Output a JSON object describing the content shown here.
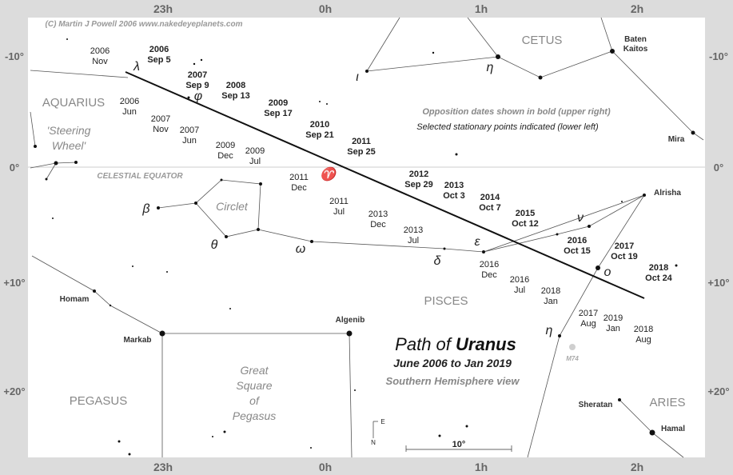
{
  "header": {
    "copyright": "(C) Martin J Powell  2006  www.nakedeyeplanets.com"
  },
  "axes": {
    "ra_top": [
      "23h",
      "0h",
      "1h",
      "2h"
    ],
    "ra_bottom": [
      "23h",
      "0h",
      "1h",
      "2h"
    ],
    "dec_left": [
      "-10°",
      "0°",
      "+10°",
      "+20°"
    ],
    "dec_right": [
      "-10°",
      "0°",
      "+10°",
      "+20°"
    ]
  },
  "title": {
    "prefix": "Path of",
    "emphasis": "Uranus",
    "subtitle": "June 2006 to Jan 2019",
    "view": "Southern Hemisphere view"
  },
  "notes": [
    "Opposition dates shown in bold (upper right)",
    "Selected stationary points indicated (lower left)"
  ],
  "equator_label": "CELESTIAL EQUATOR",
  "constellations": [
    {
      "lines": [
        "CETUS"
      ],
      "italic": false
    },
    {
      "lines": [
        "AQUARIUS"
      ],
      "italic": false
    },
    {
      "lines": [
        "'Steering",
        "Wheel'"
      ],
      "italic": true
    },
    {
      "lines": [
        "Circlet"
      ],
      "italic": true
    },
    {
      "lines": [
        "PISCES"
      ],
      "italic": false
    },
    {
      "lines": [
        "PEGASUS"
      ],
      "italic": false
    },
    {
      "lines": [
        "Great",
        "Square",
        "of",
        "Pegasus"
      ],
      "italic": true
    },
    {
      "lines": [
        "ARIES"
      ],
      "italic": false
    }
  ],
  "stars": [
    {
      "lines": [
        "Baten",
        "Kaitos"
      ]
    },
    {
      "lines": [
        "Mira"
      ]
    },
    {
      "lines": [
        "Alrisha"
      ]
    },
    {
      "lines": [
        "Homam"
      ]
    },
    {
      "lines": [
        "Markab"
      ]
    },
    {
      "lines": [
        "Algenib"
      ]
    },
    {
      "lines": [
        "M74"
      ]
    },
    {
      "lines": [
        "Sheratan"
      ]
    },
    {
      "lines": [
        "Hamal"
      ]
    }
  ],
  "greek": [
    "λ",
    "φ",
    "♈",
    "ε",
    "δ",
    "ω",
    "θ",
    "β",
    "ν",
    "ο",
    "η",
    "ι",
    "η"
  ],
  "dates": [
    {
      "lines": [
        "2006",
        "Nov"
      ],
      "bold": false
    },
    {
      "lines": [
        "2006",
        "Sep 5"
      ],
      "bold": true
    },
    {
      "lines": [
        "2006",
        "Jun"
      ],
      "bold": false
    },
    {
      "lines": [
        "2007",
        "Sep 9"
      ],
      "bold": true
    },
    {
      "lines": [
        "2007",
        "Nov"
      ],
      "bold": false
    },
    {
      "lines": [
        "2007",
        "Jun"
      ],
      "bold": false
    },
    {
      "lines": [
        "2008",
        "Sep 13"
      ],
      "bold": true
    },
    {
      "lines": [
        "2009",
        "Sep 17"
      ],
      "bold": true
    },
    {
      "lines": [
        "2009",
        "Dec"
      ],
      "bold": false
    },
    {
      "lines": [
        "2009",
        "Jul"
      ],
      "bold": false
    },
    {
      "lines": [
        "2010",
        "Sep 21"
      ],
      "bold": true
    },
    {
      "lines": [
        "2011",
        "Sep 25"
      ],
      "bold": true
    },
    {
      "lines": [
        "2011",
        "Dec"
      ],
      "bold": false
    },
    {
      "lines": [
        "2011",
        "Jul"
      ],
      "bold": false
    },
    {
      "lines": [
        "2012",
        "Sep 29"
      ],
      "bold": true
    },
    {
      "lines": [
        "2013",
        "Oct 3"
      ],
      "bold": true
    },
    {
      "lines": [
        "2013",
        "Dec"
      ],
      "bold": false
    },
    {
      "lines": [
        "2013",
        "Jul"
      ],
      "bold": false
    },
    {
      "lines": [
        "2014",
        "Oct 7"
      ],
      "bold": true
    },
    {
      "lines": [
        "2015",
        "Oct 12"
      ],
      "bold": true
    },
    {
      "lines": [
        "2016",
        "Oct 15"
      ],
      "bold": true
    },
    {
      "lines": [
        "2016",
        "Dec"
      ],
      "bold": false
    },
    {
      "lines": [
        "2016",
        "Jul"
      ],
      "bold": false
    },
    {
      "lines": [
        "2017",
        "Oct 19"
      ],
      "bold": true
    },
    {
      "lines": [
        "2018",
        "Jan"
      ],
      "bold": false
    },
    {
      "lines": [
        "2018",
        "Oct 24"
      ],
      "bold": true
    },
    {
      "lines": [
        "2017",
        "Aug"
      ],
      "bold": false
    },
    {
      "lines": [
        "2019",
        "Jan"
      ],
      "bold": false
    },
    {
      "lines": [
        "2018",
        "Aug"
      ],
      "bold": false
    }
  ],
  "scale": "10°",
  "compass": {
    "east": "E",
    "north": "N"
  }
}
